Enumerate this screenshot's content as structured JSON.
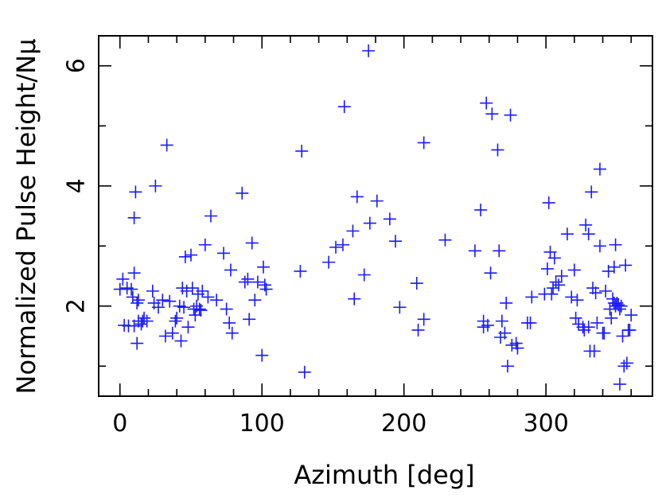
{
  "chart_data": {
    "type": "scatter",
    "xlabel": "Azimuth [deg]",
    "ylabel": "Normalized Pulse Height/Nμ",
    "xlim": [
      -15,
      375
    ],
    "ylim": [
      0.5,
      6.5
    ],
    "x_ticks": [
      0,
      100,
      200,
      300
    ],
    "x_tick_labels": [
      "0",
      "100",
      "200",
      "300"
    ],
    "y_ticks": [
      2,
      4,
      6
    ],
    "y_tick_labels": [
      "2",
      "4",
      "6"
    ],
    "grid": false,
    "marker": "plus",
    "marker_color": "#1a1aff",
    "points": [
      [
        0,
        2.28
      ],
      [
        2,
        2.45
      ],
      [
        3,
        1.68
      ],
      [
        5,
        2.3
      ],
      [
        6,
        1.67
      ],
      [
        8,
        2.28
      ],
      [
        9,
        2.15
      ],
      [
        10,
        1.67
      ],
      [
        10,
        2.55
      ],
      [
        10,
        3.47
      ],
      [
        11,
        3.9
      ],
      [
        12,
        2.05
      ],
      [
        12,
        1.38
      ],
      [
        13,
        2.1
      ],
      [
        13,
        1.75
      ],
      [
        15,
        1.7
      ],
      [
        16,
        1.75
      ],
      [
        17,
        1.8
      ],
      [
        19,
        1.75
      ],
      [
        23,
        2.25
      ],
      [
        24,
        2.05
      ],
      [
        25,
        4.0
      ],
      [
        27,
        1.98
      ],
      [
        30,
        2.1
      ],
      [
        32,
        1.5
      ],
      [
        33,
        4.68
      ],
      [
        35,
        2.08
      ],
      [
        37,
        1.55
      ],
      [
        39,
        1.75
      ],
      [
        40,
        1.8
      ],
      [
        42,
        2.0
      ],
      [
        43,
        1.42
      ],
      [
        44,
        2.3
      ],
      [
        45,
        1.98
      ],
      [
        46,
        2.82
      ],
      [
        47,
        2.25
      ],
      [
        48,
        1.65
      ],
      [
        50,
        2.85
      ],
      [
        51,
        2.3
      ],
      [
        52,
        1.95
      ],
      [
        53,
        1.85
      ],
      [
        54,
        2.0
      ],
      [
        55,
        2.2
      ],
      [
        56,
        1.95
      ],
      [
        57,
        1.93
      ],
      [
        58,
        2.25
      ],
      [
        60,
        3.02
      ],
      [
        62,
        2.15
      ],
      [
        64,
        3.5
      ],
      [
        68,
        2.1
      ],
      [
        73,
        2.88
      ],
      [
        75,
        1.95
      ],
      [
        77,
        1.72
      ],
      [
        78,
        2.6
      ],
      [
        79,
        1.55
      ],
      [
        86,
        3.88
      ],
      [
        88,
        2.4
      ],
      [
        90,
        2.45
      ],
      [
        91,
        1.78
      ],
      [
        93,
        3.05
      ],
      [
        95,
        2.1
      ],
      [
        97,
        2.4
      ],
      [
        100,
        1.18
      ],
      [
        101,
        2.65
      ],
      [
        102,
        2.35
      ],
      [
        103,
        2.28
      ],
      [
        127,
        2.58
      ],
      [
        128,
        4.58
      ],
      [
        130,
        0.9
      ],
      [
        147,
        2.73
      ],
      [
        152,
        2.98
      ],
      [
        157,
        3.02
      ],
      [
        158,
        5.32
      ],
      [
        164,
        3.25
      ],
      [
        165,
        2.12
      ],
      [
        167,
        3.82
      ],
      [
        172,
        2.52
      ],
      [
        175,
        6.25
      ],
      [
        176,
        3.38
      ],
      [
        181,
        3.75
      ],
      [
        190,
        3.45
      ],
      [
        194,
        3.08
      ],
      [
        197,
        1.98
      ],
      [
        209,
        2.38
      ],
      [
        210,
        1.6
      ],
      [
        214,
        4.72
      ],
      [
        214,
        1.78
      ],
      [
        229,
        3.1
      ],
      [
        250,
        2.92
      ],
      [
        254,
        3.6
      ],
      [
        256,
        1.65
      ],
      [
        256,
        1.75
      ],
      [
        258,
        5.38
      ],
      [
        259,
        1.68
      ],
      [
        261,
        2.55
      ],
      [
        262,
        5.2
      ],
      [
        266,
        4.6
      ],
      [
        267,
        2.92
      ],
      [
        268,
        1.48
      ],
      [
        269,
        1.75
      ],
      [
        271,
        1.55
      ],
      [
        272,
        2.05
      ],
      [
        273,
        1.0
      ],
      [
        275,
        5.18
      ],
      [
        276,
        1.35
      ],
      [
        279,
        1.38
      ],
      [
        280,
        1.3
      ],
      [
        287,
        1.72
      ],
      [
        289,
        1.72
      ],
      [
        290,
        2.15
      ],
      [
        299,
        2.2
      ],
      [
        301,
        2.62
      ],
      [
        302,
        3.72
      ],
      [
        303,
        2.9
      ],
      [
        304,
        2.2
      ],
      [
        305,
        2.3
      ],
      [
        306,
        2.8
      ],
      [
        307,
        2.4
      ],
      [
        309,
        2.35
      ],
      [
        311,
        2.5
      ],
      [
        315,
        3.2
      ],
      [
        318,
        2.15
      ],
      [
        320,
        2.6
      ],
      [
        321,
        1.8
      ],
      [
        322,
        2.1
      ],
      [
        323,
        1.7
      ],
      [
        326,
        1.65
      ],
      [
        327,
        1.6
      ],
      [
        328,
        3.35
      ],
      [
        330,
        1.65
      ],
      [
        330,
        3.2
      ],
      [
        331,
        1.25
      ],
      [
        332,
        3.9
      ],
      [
        333,
        2.3
      ],
      [
        334,
        1.25
      ],
      [
        335,
        2.22
      ],
      [
        336,
        1.72
      ],
      [
        338,
        4.28
      ],
      [
        338,
        3.0
      ],
      [
        340,
        1.55
      ],
      [
        341,
        1.55
      ],
      [
        342,
        2.25
      ],
      [
        344,
        2.58
      ],
      [
        345,
        1.95
      ],
      [
        346,
        1.8
      ],
      [
        347,
        2.12
      ],
      [
        348,
        2.65
      ],
      [
        348,
        2.05
      ],
      [
        349,
        3.02
      ],
      [
        349,
        2.0
      ],
      [
        350,
        2.05
      ],
      [
        351,
        2.02
      ],
      [
        352,
        1.95
      ],
      [
        352,
        0.7
      ],
      [
        353,
        2.0
      ],
      [
        354,
        1.5
      ],
      [
        355,
        1.0
      ],
      [
        356,
        2.68
      ],
      [
        357,
        1.05
      ],
      [
        358,
        1.6
      ],
      [
        359,
        1.6
      ],
      [
        360,
        1.85
      ]
    ]
  }
}
